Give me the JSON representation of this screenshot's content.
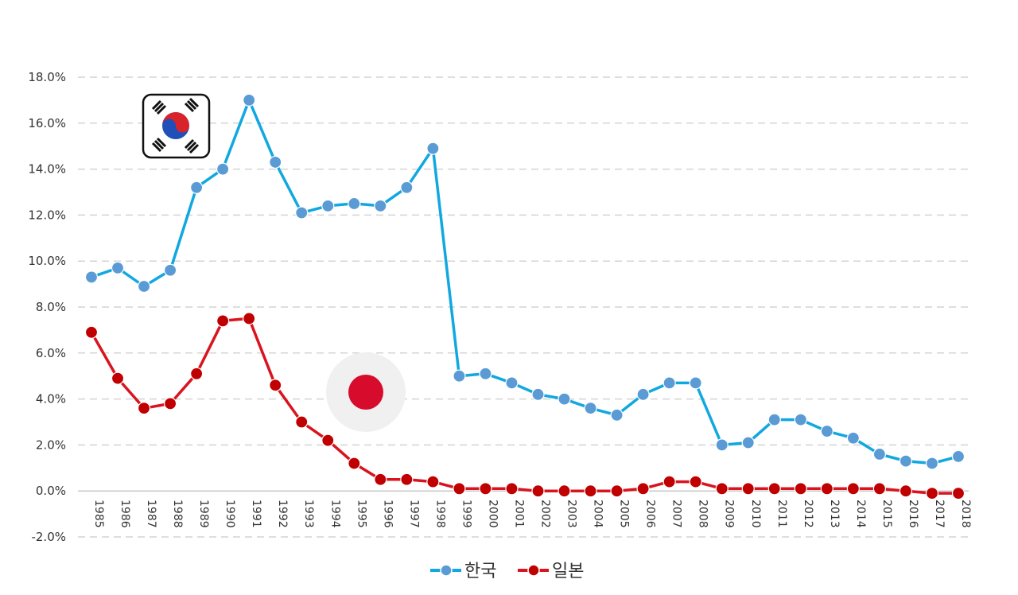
{
  "chart_data": {
    "type": "line",
    "title": "",
    "xlabel": "",
    "ylabel": "",
    "ylim": [
      -2.0,
      18.0
    ],
    "y_ticks": [
      "-2.0%",
      "0.0%",
      "2.0%",
      "4.0%",
      "6.0%",
      "8.0%",
      "10.0%",
      "12.0%",
      "14.0%",
      "16.0%",
      "18.0%"
    ],
    "y_tick_values": [
      -2,
      0,
      2,
      4,
      6,
      8,
      10,
      12,
      14,
      16,
      18
    ],
    "grid": "horizontal-dashed",
    "legend_position": "bottom-center",
    "categories": [
      "1985",
      "1986",
      "1987",
      "1988",
      "1989",
      "1990",
      "1991",
      "1992",
      "1993",
      "1994",
      "1995",
      "1996",
      "1997",
      "1998",
      "1999",
      "2000",
      "2001",
      "2002",
      "2003",
      "2004",
      "2005",
      "2006",
      "2007",
      "2008",
      "2009",
      "2010",
      "2011",
      "2012",
      "2013",
      "2014",
      "2015",
      "2016",
      "2017",
      "2018"
    ],
    "series": [
      {
        "name": "한국",
        "line_color": "#11a8e0",
        "marker_color": "#5b9bd5",
        "values": [
          9.3,
          9.7,
          8.9,
          9.6,
          13.2,
          14.0,
          17.0,
          14.3,
          12.1,
          12.4,
          12.5,
          12.4,
          13.2,
          14.9,
          5.0,
          5.1,
          4.7,
          4.2,
          4.0,
          3.6,
          3.3,
          4.2,
          4.7,
          4.7,
          2.0,
          2.1,
          3.1,
          3.1,
          2.6,
          2.3,
          1.6,
          1.3,
          1.2,
          1.5
        ]
      },
      {
        "name": "일본",
        "line_color": "#d9141e",
        "marker_color": "#c00000",
        "values": [
          6.9,
          4.9,
          3.6,
          3.8,
          5.1,
          7.4,
          7.5,
          4.6,
          3.0,
          2.2,
          1.2,
          0.5,
          0.5,
          0.4,
          0.1,
          0.1,
          0.1,
          0.0,
          0.0,
          0.0,
          0.0,
          0.1,
          0.4,
          0.4,
          0.1,
          0.1,
          0.1,
          0.1,
          0.1,
          0.1,
          0.1,
          0.0,
          -0.1,
          -0.1
        ]
      }
    ]
  },
  "icons": {
    "korea_flag": "south-korea-flag-icon",
    "japan_flag": "japan-flag-icon"
  }
}
